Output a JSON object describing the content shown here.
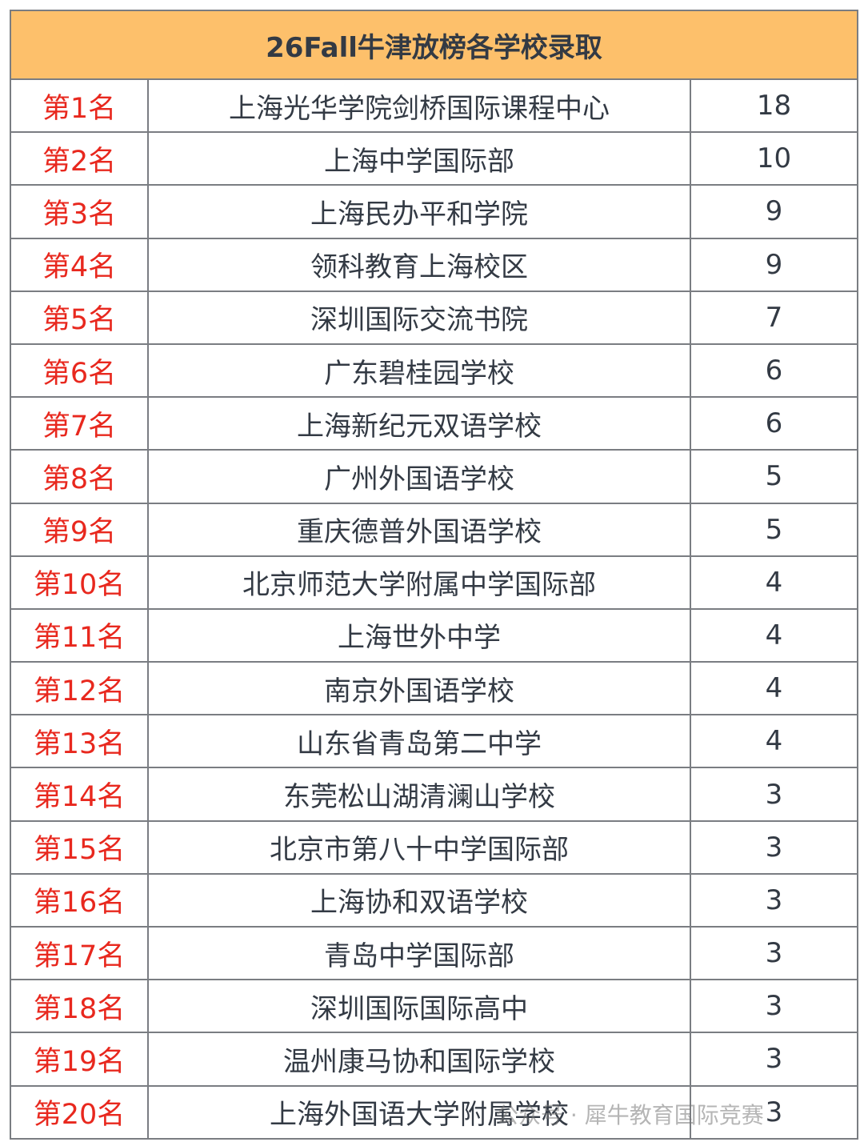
{
  "title": "26Fall牛津放榜各学校录取",
  "rows": [
    {
      "rank": "第1名",
      "school": "上海光华学院剑桥国际课程中心",
      "count": "18"
    },
    {
      "rank": "第2名",
      "school": "上海中学国际部",
      "count": "10"
    },
    {
      "rank": "第3名",
      "school": "上海民办平和学院",
      "count": "9"
    },
    {
      "rank": "第4名",
      "school": "领科教育上海校区",
      "count": "9"
    },
    {
      "rank": "第5名",
      "school": "深圳国际交流书院",
      "count": "7"
    },
    {
      "rank": "第6名",
      "school": "广东碧桂园学校",
      "count": "6"
    },
    {
      "rank": "第7名",
      "school": "上海新纪元双语学校",
      "count": "6"
    },
    {
      "rank": "第8名",
      "school": "广州外国语学校",
      "count": "5"
    },
    {
      "rank": "第9名",
      "school": "重庆德普外国语学校",
      "count": "5"
    },
    {
      "rank": "第10名",
      "school": "北京师范大学附属中学国际部",
      "count": "4"
    },
    {
      "rank": "第11名",
      "school": "上海世外中学",
      "count": "4"
    },
    {
      "rank": "第12名",
      "school": "南京外国语学校",
      "count": "4"
    },
    {
      "rank": "第13名",
      "school": "山东省青岛第二中学",
      "count": "4"
    },
    {
      "rank": "第14名",
      "school": "东莞松山湖清澜山学校",
      "count": "3"
    },
    {
      "rank": "第15名",
      "school": "北京市第八十中学国际部",
      "count": "3"
    },
    {
      "rank": "第16名",
      "school": "上海协和双语学校",
      "count": "3"
    },
    {
      "rank": "第17名",
      "school": "青岛中学国际部",
      "count": "3"
    },
    {
      "rank": "第18名",
      "school": "深圳国际国际高中",
      "count": "3"
    },
    {
      "rank": "第19名",
      "school": "温州康马协和国际学校",
      "count": "3"
    },
    {
      "rank": "第20名",
      "school": "上海外国语大学附属学校",
      "count": "3"
    }
  ],
  "watermark": "公众号 · 犀牛教育国际竞赛",
  "colors": {
    "header_bg": "#fdc06b",
    "rank_text": "#e8281e",
    "body_text": "#333a44",
    "border": "#7a7d82"
  }
}
